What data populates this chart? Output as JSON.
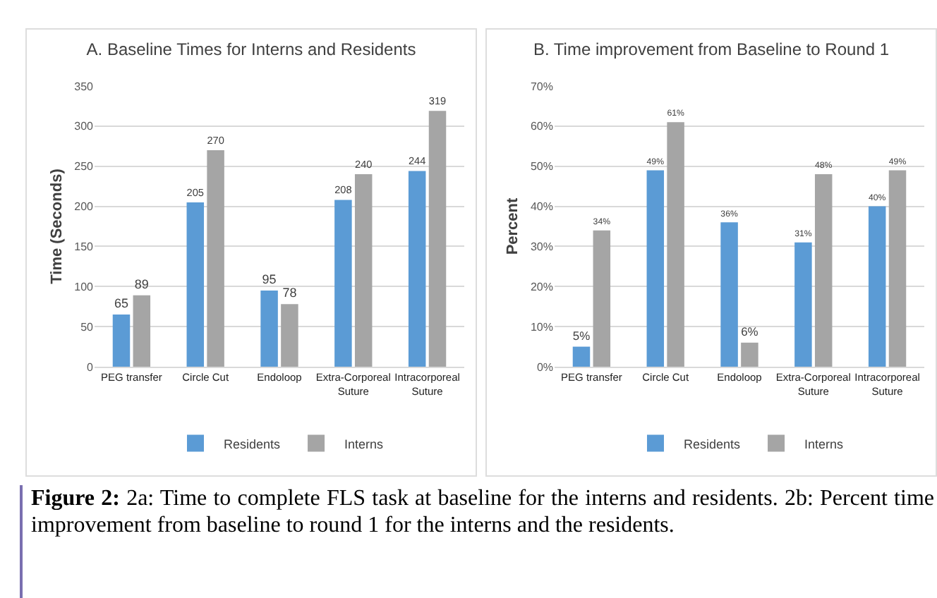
{
  "chart_data": [
    {
      "type": "bar",
      "title": "A. Baseline Times for Interns and Residents",
      "ylabel": "Time (Seconds)",
      "categories": [
        "PEG transfer",
        "Circle Cut",
        "Endoloop",
        "Extra-Corporeal Suture",
        "Intracorporeal Suture"
      ],
      "series": [
        {
          "name": "Residents",
          "color": "#5b9bd5",
          "values": [
            65,
            205,
            95,
            208,
            244
          ]
        },
        {
          "name": "Interns",
          "color": "#a5a5a5",
          "values": [
            89,
            270,
            78,
            240,
            319
          ]
        }
      ],
      "ylim": [
        0,
        350
      ],
      "yticks": [
        0,
        50,
        100,
        150,
        200,
        250,
        300,
        350
      ],
      "grid": "y",
      "legend": "bottom",
      "data_labels": true,
      "annotations": [
        "Figure 2:",
        "2a: Time to complete FLS task at baseline for the interns and residents. 2b: Percent time improvement from baseline to round 1 for the interns and the residents."
      ]
    },
    {
      "type": "bar",
      "title": "B. Time improvement from Baseline to Round 1",
      "ylabel": "Percent",
      "categories": [
        "PEG transfer",
        "Circle Cut",
        "Endoloop",
        "Extra-Corporeal Suture",
        "Intracorporeal Suture"
      ],
      "series": [
        {
          "name": "Residents",
          "color": "#5b9bd5",
          "values": [
            5,
            49,
            36,
            31,
            40
          ],
          "value_labels": [
            "5%",
            "49%",
            "36%",
            "31%",
            "40%"
          ]
        },
        {
          "name": "Interns",
          "color": "#a5a5a5",
          "values": [
            34,
            61,
            6,
            48,
            49
          ],
          "value_labels": [
            "34%",
            "61%",
            "6%",
            "48%",
            "49%"
          ]
        }
      ],
      "ylim": [
        0,
        70
      ],
      "yticks": [
        {
          "value": 0,
          "label": "0%"
        },
        {
          "value": 10,
          "label": "10%"
        },
        {
          "value": 20,
          "label": "20%"
        },
        {
          "value": 30,
          "label": "30%"
        },
        {
          "value": 40,
          "label": "40%"
        },
        {
          "value": 50,
          "label": "50%"
        },
        {
          "value": 60,
          "label": "60%"
        },
        {
          "value": 70,
          "label": "70%"
        }
      ],
      "grid": "y",
      "legend": "bottom"
    }
  ]
}
